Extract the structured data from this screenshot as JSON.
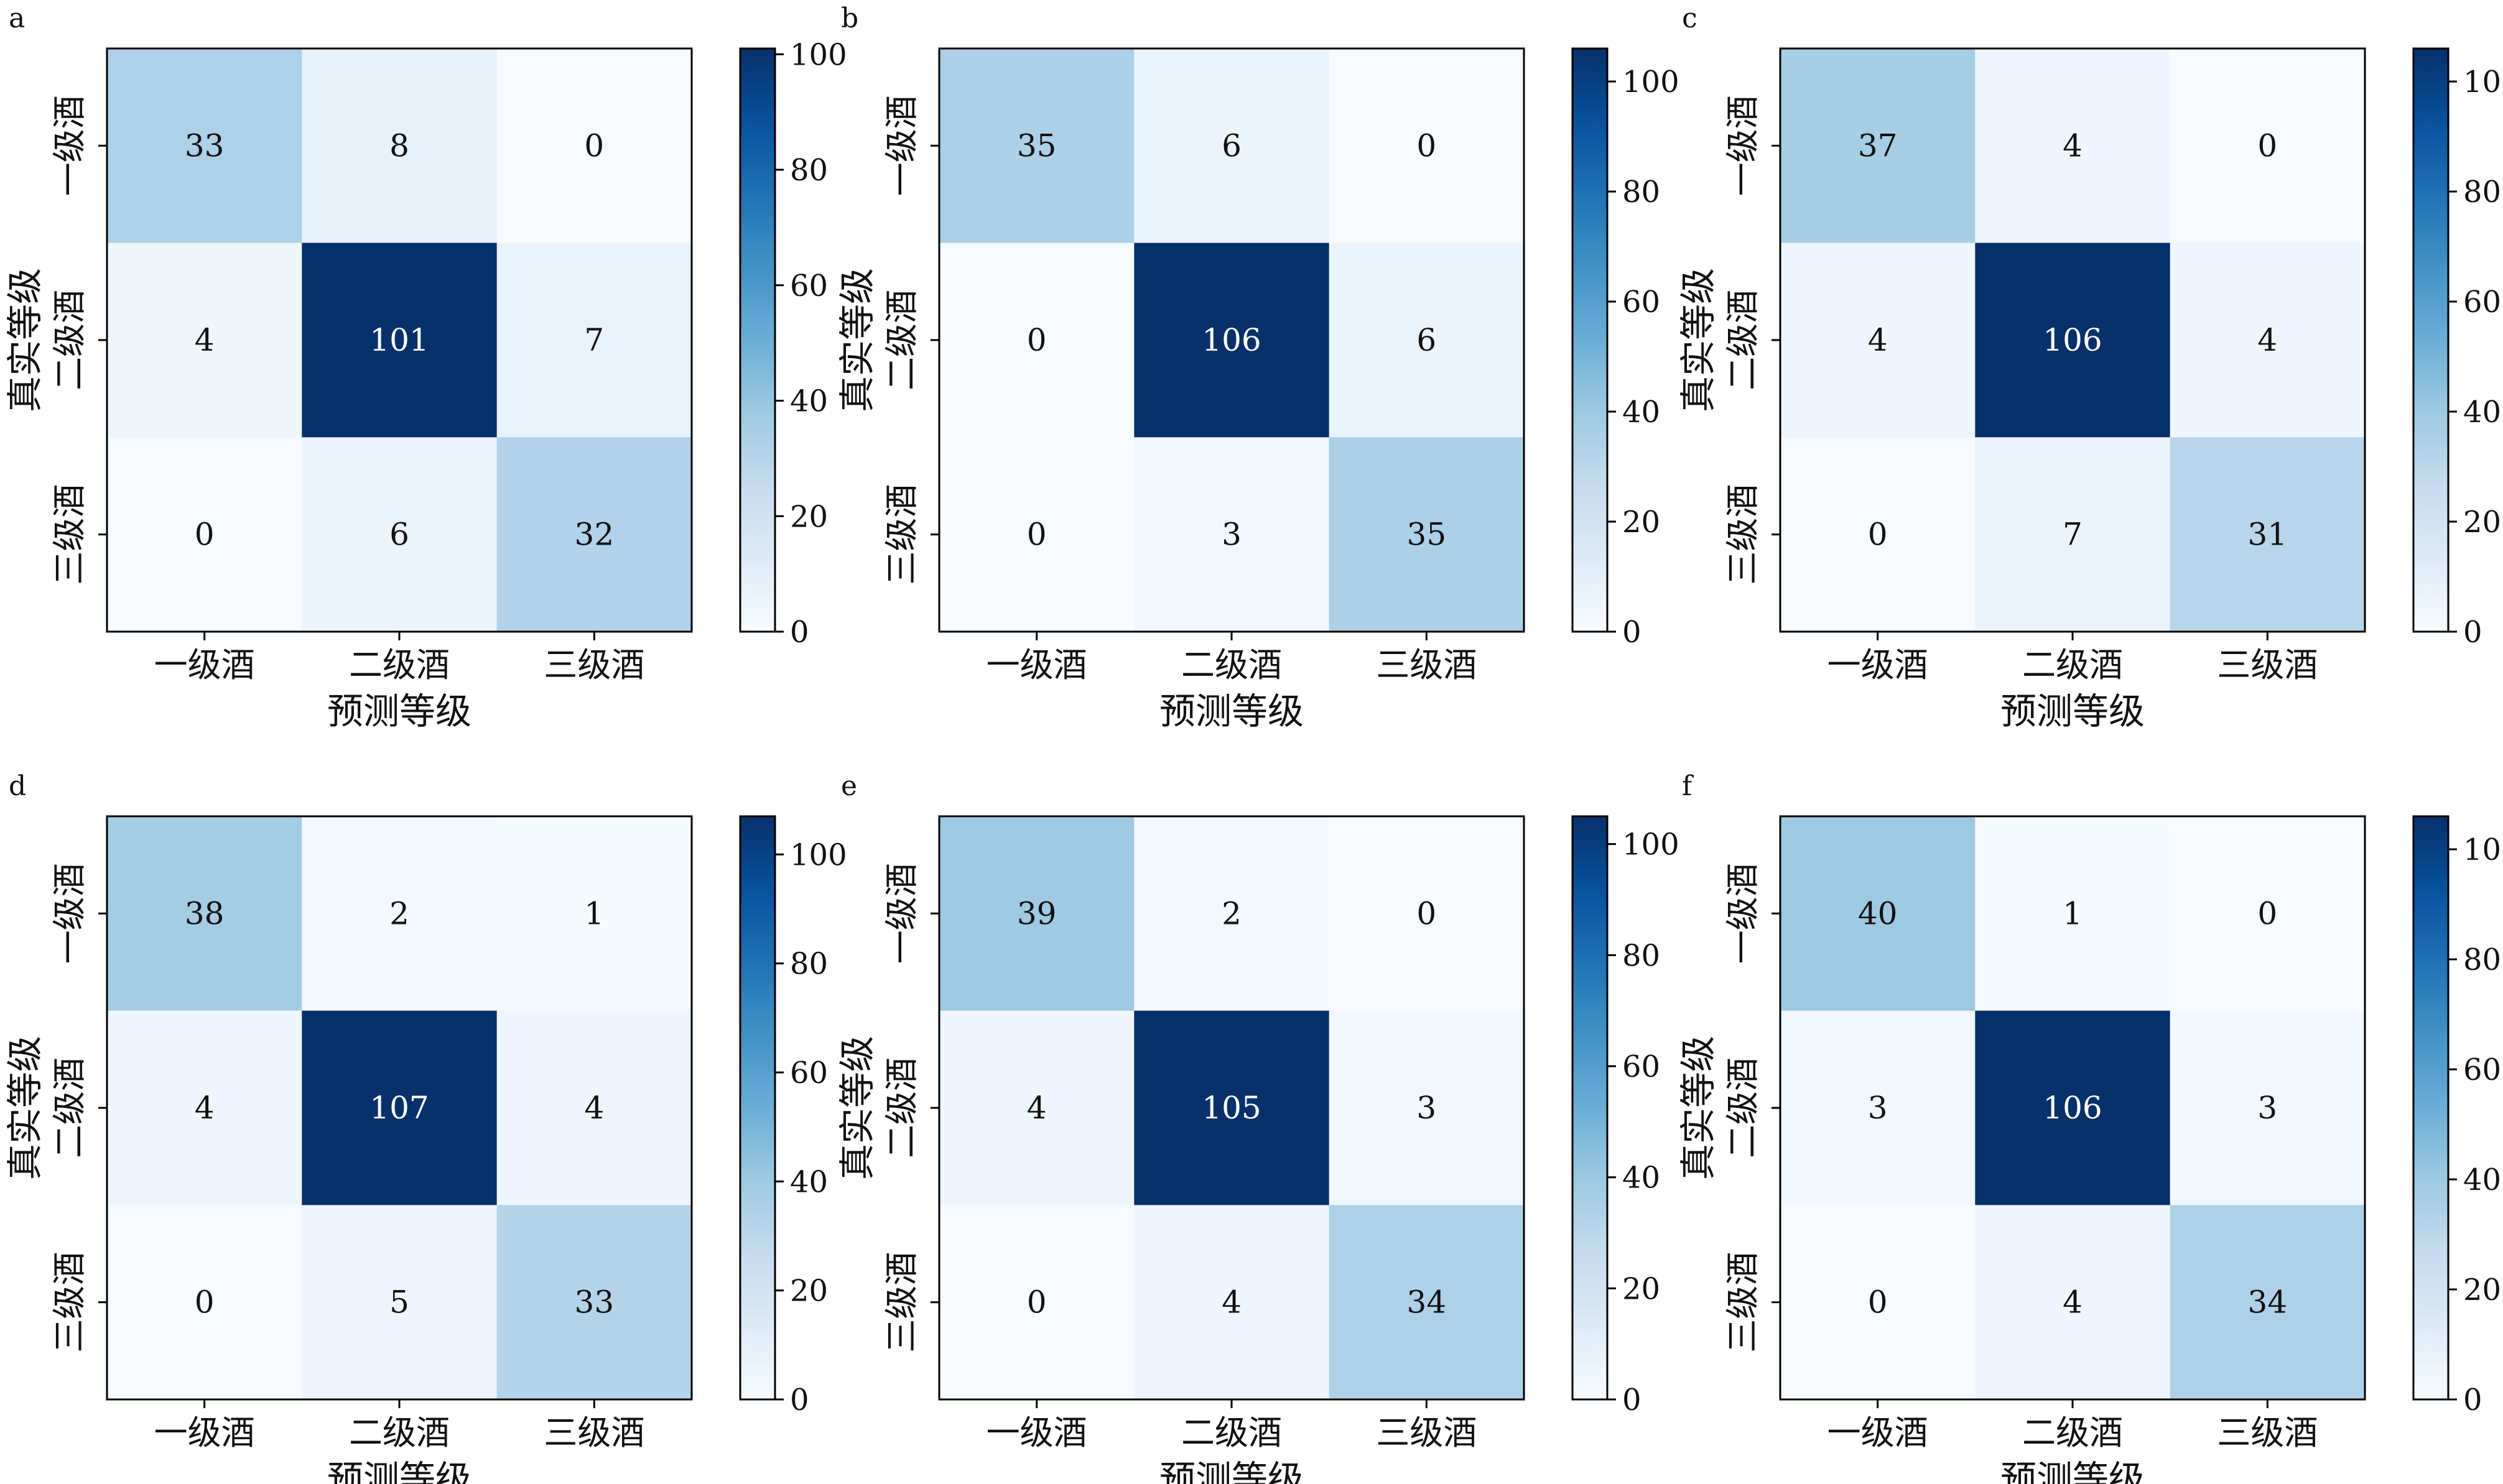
{
  "figure": {
    "colormap": {
      "name": "Blues",
      "low": "#f7fbff",
      "high": "#08306b"
    }
  },
  "chart_data": [
    {
      "type": "heatmap",
      "panel_label": "a",
      "x_categories": [
        "一级酒",
        "二级酒",
        "三级酒"
      ],
      "y_categories": [
        "一级酒",
        "二级酒",
        "三级酒"
      ],
      "xlabel": "预测等级",
      "ylabel": "真实等级",
      "values": [
        [
          33,
          8,
          0
        ],
        [
          4,
          101,
          7
        ],
        [
          0,
          6,
          32
        ]
      ],
      "colorbar": {
        "range": [
          0,
          101
        ],
        "ticks": [
          0,
          20,
          40,
          60,
          80,
          100
        ]
      }
    },
    {
      "type": "heatmap",
      "panel_label": "b",
      "x_categories": [
        "一级酒",
        "二级酒",
        "三级酒"
      ],
      "y_categories": [
        "一级酒",
        "二级酒",
        "三级酒"
      ],
      "xlabel": "预测等级",
      "ylabel": "真实等级",
      "values": [
        [
          35,
          6,
          0
        ],
        [
          0,
          106,
          6
        ],
        [
          0,
          3,
          35
        ]
      ],
      "colorbar": {
        "range": [
          0,
          106
        ],
        "ticks": [
          0,
          20,
          40,
          60,
          80,
          100
        ]
      }
    },
    {
      "type": "heatmap",
      "panel_label": "c",
      "x_categories": [
        "一级酒",
        "二级酒",
        "三级酒"
      ],
      "y_categories": [
        "一级酒",
        "二级酒",
        "三级酒"
      ],
      "xlabel": "预测等级",
      "ylabel": "真实等级",
      "values": [
        [
          37,
          4,
          0
        ],
        [
          4,
          106,
          4
        ],
        [
          0,
          7,
          31
        ]
      ],
      "colorbar": {
        "range": [
          0,
          106
        ],
        "ticks": [
          0,
          20,
          40,
          60,
          80,
          100
        ]
      }
    },
    {
      "type": "heatmap",
      "panel_label": "d",
      "x_categories": [
        "一级酒",
        "二级酒",
        "三级酒"
      ],
      "y_categories": [
        "一级酒",
        "二级酒",
        "三级酒"
      ],
      "xlabel": "预测等级",
      "ylabel": "真实等级",
      "values": [
        [
          38,
          2,
          1
        ],
        [
          4,
          107,
          4
        ],
        [
          0,
          5,
          33
        ]
      ],
      "colorbar": {
        "range": [
          0,
          107
        ],
        "ticks": [
          0,
          20,
          40,
          60,
          80,
          100
        ]
      }
    },
    {
      "type": "heatmap",
      "panel_label": "e",
      "x_categories": [
        "一级酒",
        "二级酒",
        "三级酒"
      ],
      "y_categories": [
        "一级酒",
        "二级酒",
        "三级酒"
      ],
      "xlabel": "预测等级",
      "ylabel": "真实等级",
      "values": [
        [
          39,
          2,
          0
        ],
        [
          4,
          105,
          3
        ],
        [
          0,
          4,
          34
        ]
      ],
      "colorbar": {
        "range": [
          0,
          105
        ],
        "ticks": [
          0,
          20,
          40,
          60,
          80,
          100
        ]
      }
    },
    {
      "type": "heatmap",
      "panel_label": "f",
      "x_categories": [
        "一级酒",
        "二级酒",
        "三级酒"
      ],
      "y_categories": [
        "一级酒",
        "二级酒",
        "三级酒"
      ],
      "xlabel": "预测等级",
      "ylabel": "真实等级",
      "values": [
        [
          40,
          1,
          0
        ],
        [
          3,
          106,
          3
        ],
        [
          0,
          4,
          34
        ]
      ],
      "colorbar": {
        "range": [
          0,
          106
        ],
        "ticks": [
          0,
          20,
          40,
          60,
          80,
          100
        ]
      }
    }
  ]
}
